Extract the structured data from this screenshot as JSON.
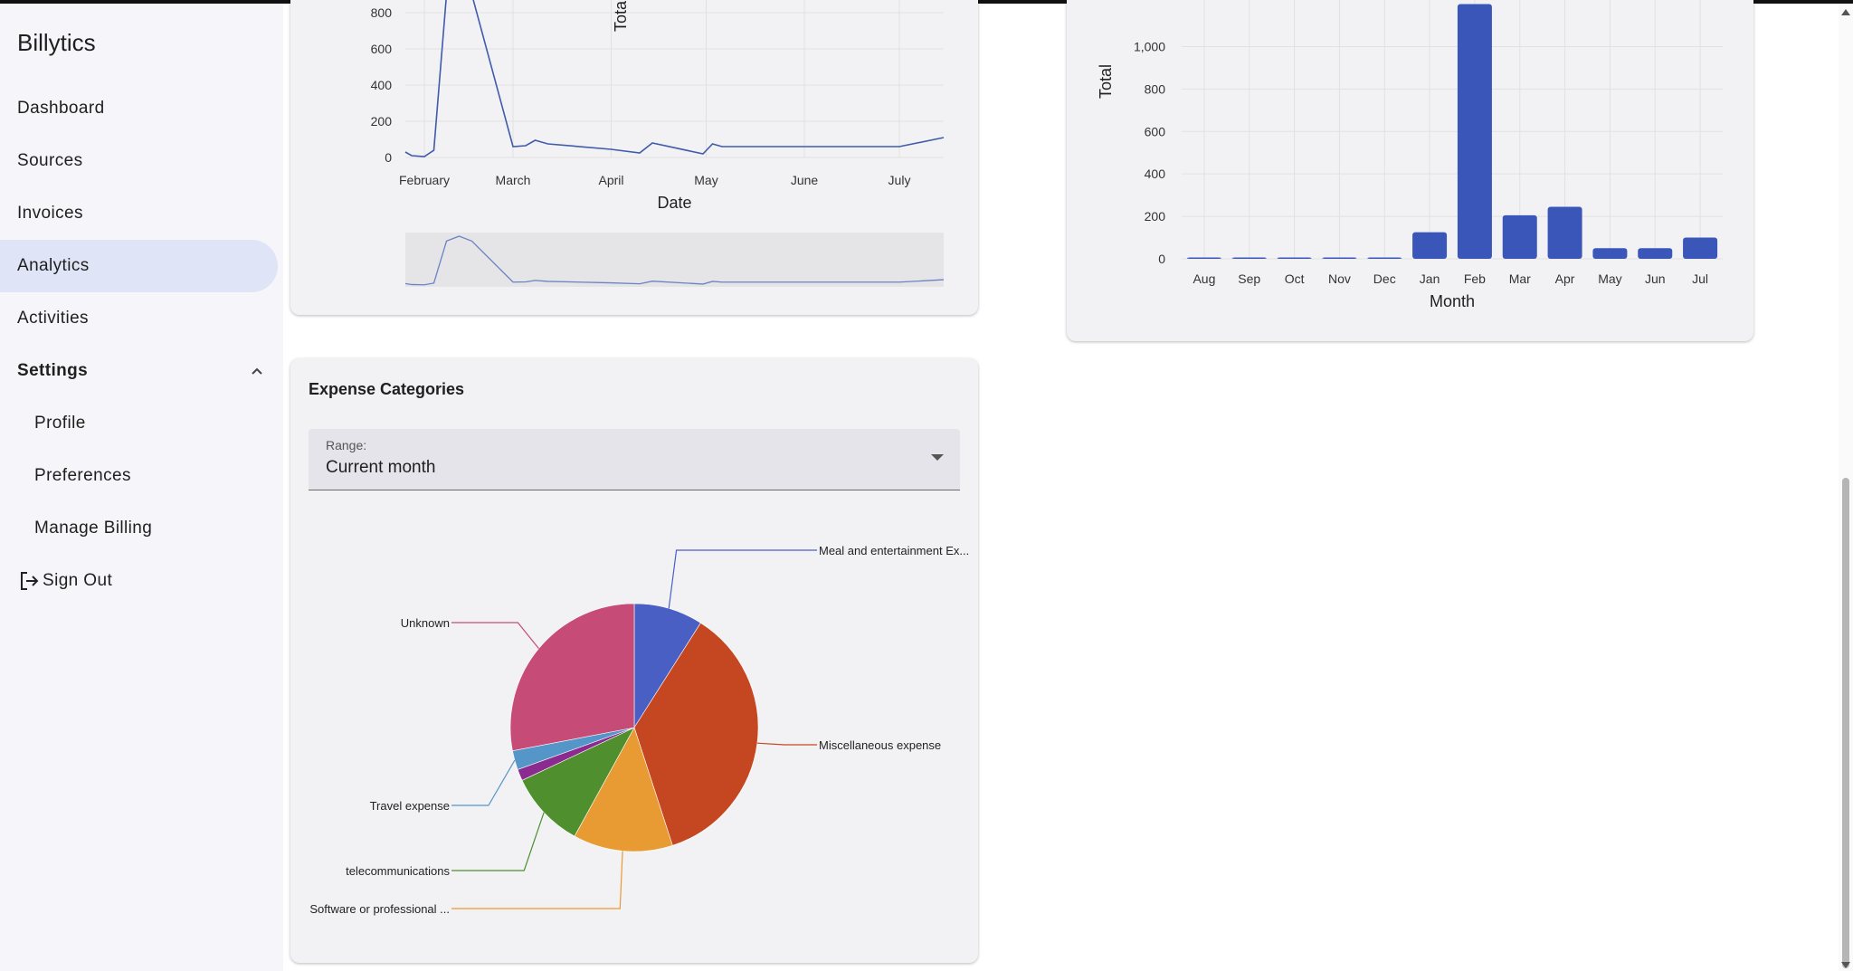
{
  "app": {
    "title": "Billytics"
  },
  "sidebar": {
    "items": [
      {
        "label": "Dashboard"
      },
      {
        "label": "Sources"
      },
      {
        "label": "Invoices"
      },
      {
        "label": "Analytics",
        "active": true
      },
      {
        "label": "Activities"
      },
      {
        "label": "Settings",
        "expanded": true
      },
      {
        "label": "Profile"
      },
      {
        "label": "Preferences"
      },
      {
        "label": "Manage Billing"
      },
      {
        "label": "Sign Out"
      }
    ]
  },
  "expense_card": {
    "title": "Expense Categories",
    "range_label": "Range:",
    "range_value": "Current month"
  },
  "chart_data": [
    {
      "type": "line",
      "title": "",
      "xlabel": "Date",
      "ylabel": "Tota",
      "x_ticks": [
        "February",
        "March",
        "April",
        "May",
        "June",
        "July"
      ],
      "y_ticks": [
        0,
        200,
        400,
        600,
        800
      ],
      "ylim": [
        0,
        800
      ],
      "grid": true,
      "has_range_slider": true,
      "series": [
        {
          "color": "#3f5ba9",
          "points": [
            [
              "Jan 26",
              30
            ],
            [
              "Jan 28",
              10
            ],
            [
              "Feb 1",
              5
            ],
            [
              "Feb 4",
              40
            ],
            [
              "Feb 8",
              900
            ],
            [
              "Feb 12",
              1000
            ],
            [
              "Feb 16",
              900
            ],
            [
              "Mar 1",
              60
            ],
            [
              "Mar 5",
              65
            ],
            [
              "Mar 8",
              95
            ],
            [
              "Mar 12",
              75
            ],
            [
              "Apr 1",
              45
            ],
            [
              "Apr 10",
              25
            ],
            [
              "Apr 14",
              80
            ],
            [
              "Apr 30",
              20
            ],
            [
              "May 3",
              75
            ],
            [
              "May 6",
              60
            ],
            [
              "Jul 1",
              60
            ],
            [
              "Jul 15",
              110
            ]
          ]
        }
      ]
    },
    {
      "type": "bar",
      "title": "",
      "xlabel": "Month",
      "ylabel": "Total",
      "categories": [
        "Aug",
        "Sep",
        "Oct",
        "Nov",
        "Dec",
        "Jan",
        "Feb",
        "Mar",
        "Apr",
        "May",
        "Jun",
        "Jul"
      ],
      "y_ticks": [
        "0",
        "200",
        "400",
        "600",
        "800",
        "1,000"
      ],
      "values": [
        2,
        2,
        2,
        2,
        2,
        125,
        1200,
        205,
        245,
        50,
        50,
        100
      ],
      "ylim": [
        0,
        1100
      ],
      "grid": true,
      "color": "#3a56b8"
    },
    {
      "type": "pie",
      "title": "",
      "slices": [
        {
          "label": "Meal and entertainment Ex...",
          "value": 9,
          "color": "#4a5fc4"
        },
        {
          "label": "Miscellaneous expense",
          "value": 36,
          "color": "#c44721"
        },
        {
          "label": "Software or professional ...",
          "value": 13,
          "color": "#e89a33"
        },
        {
          "label": "telecommunications",
          "value": 10,
          "color": "#4f8f2e"
        },
        {
          "label": "",
          "value": 1.5,
          "color": "#8b2a8f"
        },
        {
          "label": "Travel expense",
          "value": 2.5,
          "color": "#5496c7"
        },
        {
          "label": "Unknown",
          "value": 28,
          "color": "#c64b77"
        }
      ]
    }
  ]
}
